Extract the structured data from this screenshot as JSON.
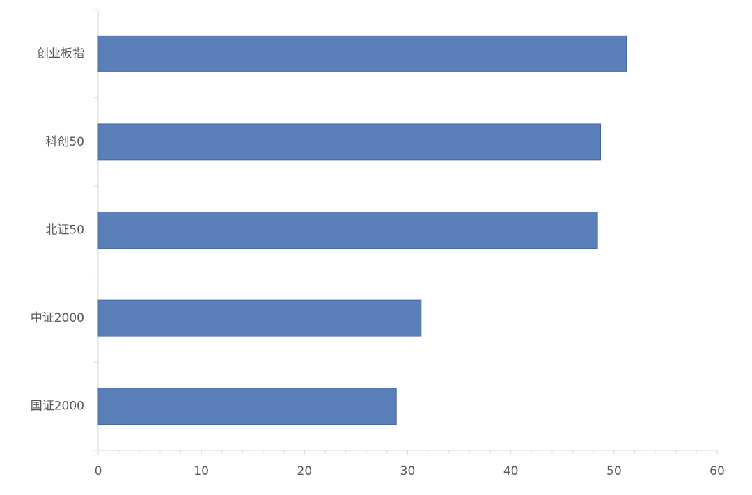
{
  "chart_data": {
    "type": "bar",
    "orientation": "horizontal",
    "categories": [
      "创业板指",
      "科创50",
      "北证50",
      "中证2000",
      "国证2000"
    ],
    "values": [
      51.2,
      48.7,
      48.4,
      31.3,
      28.9
    ],
    "color": "#5b80b9",
    "xlim": [
      0,
      60
    ],
    "xticks": [
      0,
      10,
      20,
      30,
      40,
      50,
      60
    ],
    "grid": false
  }
}
